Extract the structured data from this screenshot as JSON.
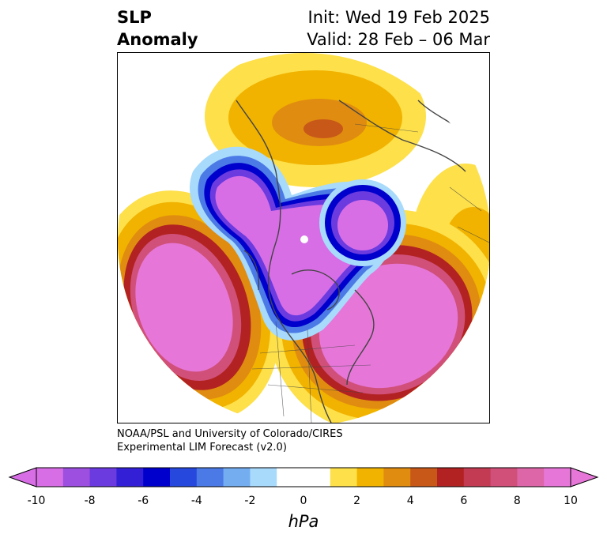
{
  "header": {
    "title_line1": "SLP",
    "title_line2": "Anomaly",
    "init_text": "Init: Wed 19 Feb 2025",
    "valid_text": "Valid: 28 Feb – 06 Mar"
  },
  "credit": {
    "line1": "NOAA/PSL and University of Colorado/CIRES",
    "line2": "Experimental LIM Forecast (v2.0)"
  },
  "colorbar": {
    "unit": "hPa",
    "tick_labels": [
      "-10",
      "-8",
      "-6",
      "-4",
      "-2",
      "0",
      "2",
      "4",
      "6",
      "8",
      "10"
    ],
    "colors": [
      "#d86ee6",
      "#9d4fe0",
      "#6b3be0",
      "#3320d6",
      "#0000cc",
      "#2648dc",
      "#4b7ae6",
      "#74aef0",
      "#a8dafc",
      "#ffffff",
      "#ffffff",
      "#fde04a",
      "#f1b300",
      "#e08c10",
      "#c85818",
      "#b22222",
      "#c23b52",
      "#d0507a",
      "#dc66a8",
      "#e677d8"
    ],
    "low_cap_color": "#d86ee6",
    "high_cap_color": "#e677d8"
  }
}
